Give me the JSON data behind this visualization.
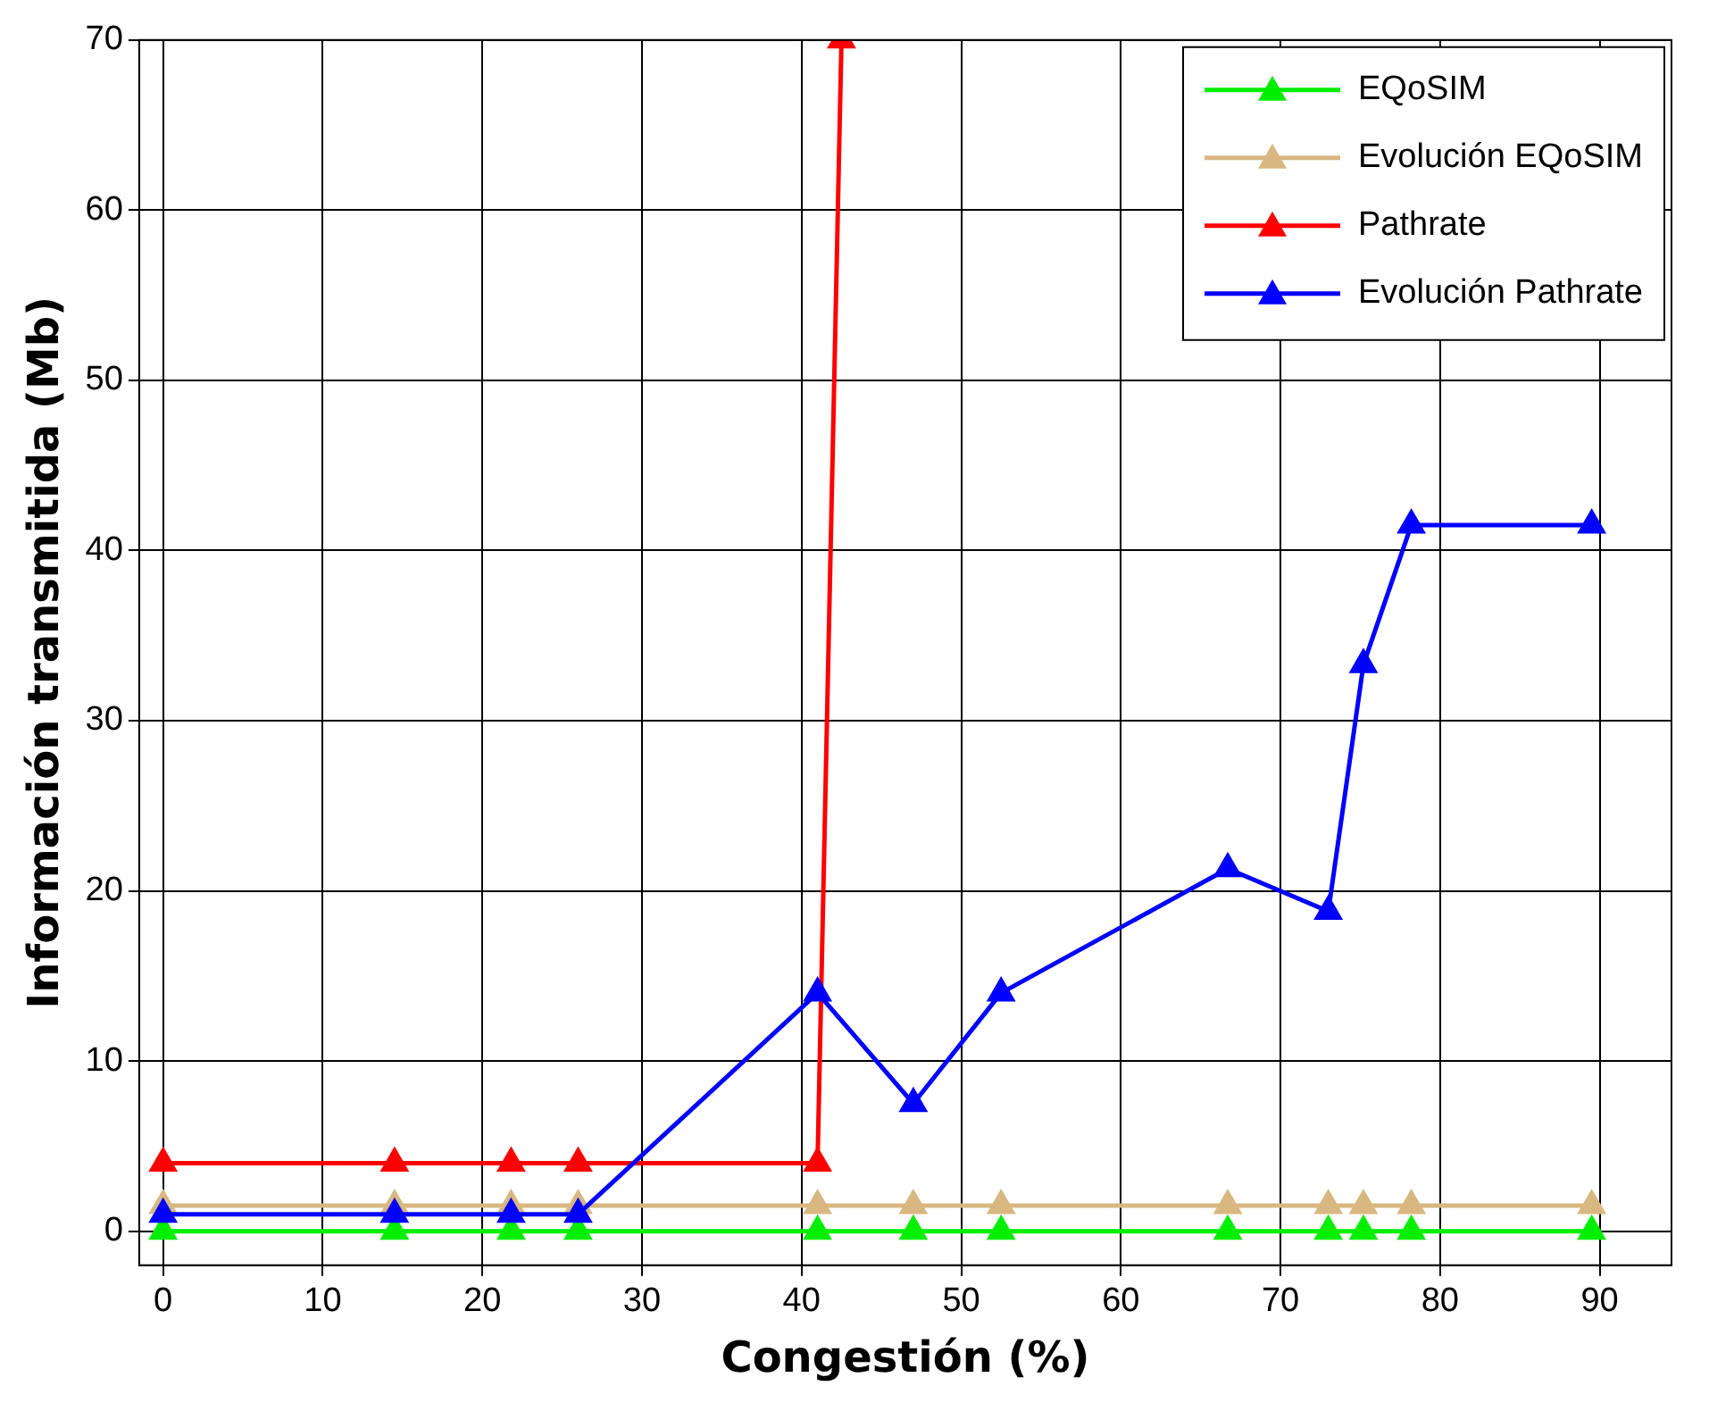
{
  "chart_data": {
    "type": "line",
    "xlabel": "Congestión (%)",
    "ylabel": "Información transmitida (Mb)",
    "xlim": [
      -1.5,
      94.5
    ],
    "ylim": [
      -2,
      70
    ],
    "xticks": [
      0,
      10,
      20,
      30,
      40,
      50,
      60,
      70,
      80,
      90
    ],
    "yticks": [
      0,
      10,
      20,
      30,
      40,
      50,
      60,
      70
    ],
    "grid": true,
    "legend": "top right",
    "marker": "triangle",
    "line_style": "solid",
    "series": [
      {
        "name": "EQoSIM",
        "color": "#00ee00",
        "x": [
          0,
          14.5,
          21.8,
          26,
          41,
          47,
          52.5,
          66.7,
          73,
          75.2,
          78.2,
          89.5
        ],
        "values": [
          0,
          0,
          0,
          0,
          0,
          0,
          0,
          0,
          0,
          0,
          0,
          0
        ]
      },
      {
        "name": "Evolución EQoSIM",
        "color": "#d8b880",
        "x": [
          0,
          14.5,
          21.8,
          26,
          41,
          47,
          52.5,
          66.7,
          73,
          75.2,
          78.2,
          89.5
        ],
        "values": [
          1.5,
          1.5,
          1.5,
          1.5,
          1.5,
          1.5,
          1.5,
          1.5,
          1.5,
          1.5,
          1.5,
          1.5
        ]
      },
      {
        "name": "Pathrate",
        "color": "#ff0000",
        "x": [
          0,
          14.5,
          21.8,
          26,
          41,
          42.5
        ],
        "values": [
          4,
          4,
          4,
          4,
          4,
          70
        ]
      },
      {
        "name": "Evolución Pathrate",
        "color": "#0000ff",
        "x": [
          0,
          14.5,
          21.8,
          26,
          41,
          47,
          52.5,
          66.7,
          73,
          75.2,
          78.2,
          89.5
        ],
        "values": [
          1,
          1,
          1,
          1,
          14,
          7.5,
          14,
          21.3,
          18.8,
          33.3,
          41.5,
          41.5
        ]
      }
    ]
  }
}
